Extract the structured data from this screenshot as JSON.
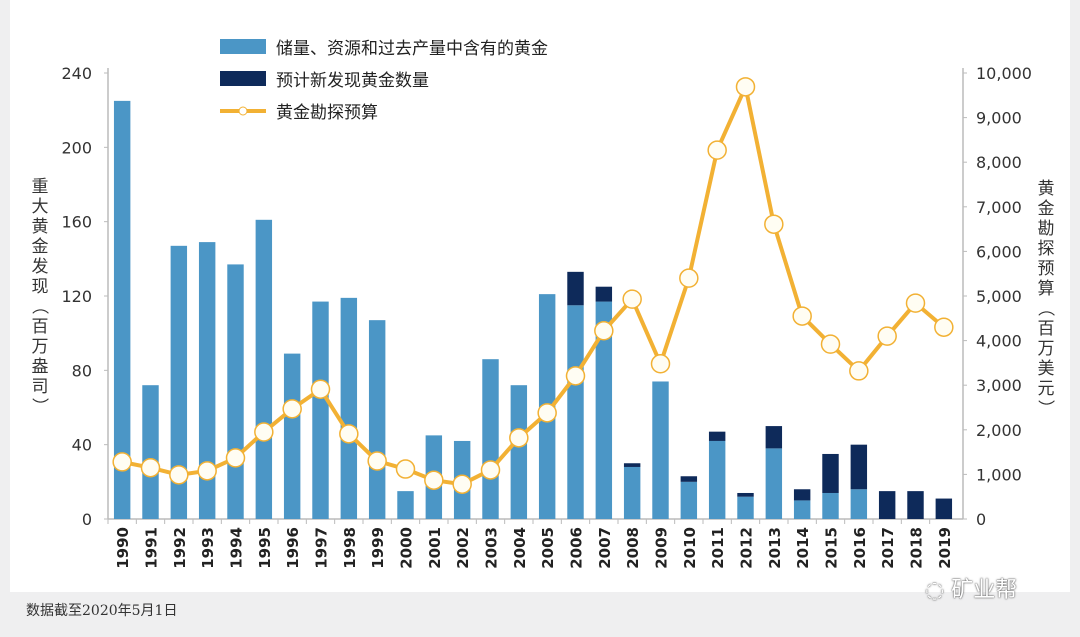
{
  "chart_data": {
    "type": "bar",
    "categories": [
      "1990",
      "1991",
      "1992",
      "1993",
      "1994",
      "1995",
      "1996",
      "1997",
      "1998",
      "1999",
      "2000",
      "2001",
      "2002",
      "2003",
      "2004",
      "2005",
      "2006",
      "2007",
      "2008",
      "2009",
      "2010",
      "2011",
      "2012",
      "2013",
      "2014",
      "2015",
      "2016",
      "2017",
      "2018",
      "2019"
    ],
    "ylabel": "重大黄金发现（百万盎司）",
    "ylabel_right": "黄金勘探预算（百万美元）",
    "ylim": [
      0,
      240
    ],
    "ylim_right": [
      0,
      10000
    ],
    "yticks": [
      "0",
      "40",
      "80",
      "120",
      "160",
      "200",
      "240"
    ],
    "yticks_right": [
      "0",
      "1,000",
      "2,000",
      "3,000",
      "4,000",
      "5,000",
      "6,000",
      "7,000",
      "8,000",
      "9,000",
      "10,000"
    ],
    "legend_placement": "top",
    "grid": false,
    "series": [
      {
        "name": "储量、资源和过去产量中含有的黄金",
        "type": "bar",
        "stack": "a",
        "axis": "left",
        "color": "#4b96c6",
        "values": [
          225,
          72,
          147,
          149,
          137,
          161,
          89,
          117,
          119,
          107,
          15,
          45,
          42,
          86,
          72,
          121,
          115,
          117,
          28,
          74,
          20,
          42,
          12,
          38,
          10,
          14,
          16,
          0,
          0,
          0
        ]
      },
      {
        "name": "预计新发现黄金数量",
        "type": "bar",
        "stack": "a",
        "axis": "left",
        "color": "#0e2a5a",
        "values": [
          0,
          0,
          0,
          0,
          0,
          0,
          0,
          0,
          0,
          0,
          0,
          0,
          0,
          0,
          0,
          0,
          18,
          8,
          2,
          0,
          3,
          5,
          2,
          12,
          6,
          21,
          24,
          15,
          15,
          11
        ]
      },
      {
        "name": "黄金勘探预算",
        "type": "line",
        "axis": "right",
        "color": "#f2b134",
        "values": [
          1280,
          1150,
          990,
          1080,
          1370,
          1950,
          2470,
          2910,
          1910,
          1300,
          1120,
          870,
          780,
          1100,
          1820,
          2380,
          3210,
          4220,
          4930,
          3480,
          5400,
          8270,
          9690,
          6610,
          4550,
          3920,
          3320,
          4100,
          4840,
          4300
        ]
      }
    ]
  },
  "footnote": "数据截至2020年5月1日",
  "watermark": "矿业帮"
}
